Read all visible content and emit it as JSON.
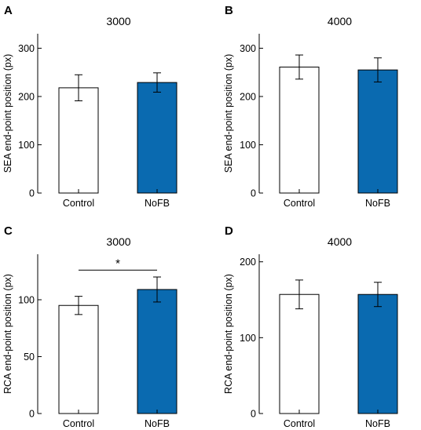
{
  "chart_data": [
    {
      "panel_letter": "A",
      "type": "bar",
      "title": "3000",
      "ylabel": "SEA end-point position (px)",
      "xlabel": "",
      "categories": [
        "Control",
        "NoFB"
      ],
      "values": [
        218,
        229
      ],
      "errors": [
        27,
        20
      ],
      "ylim": [
        0,
        330
      ],
      "yticks": [
        0,
        100,
        200,
        300
      ],
      "bar_colors": [
        "#ffffff",
        "#0a6ab0"
      ],
      "significance": null
    },
    {
      "panel_letter": "B",
      "type": "bar",
      "title": "4000",
      "ylabel": "SEA end-point position (px)",
      "xlabel": "",
      "categories": [
        "Control",
        "NoFB"
      ],
      "values": [
        261,
        255
      ],
      "errors": [
        25,
        25
      ],
      "ylim": [
        0,
        330
      ],
      "yticks": [
        0,
        100,
        200,
        300
      ],
      "bar_colors": [
        "#ffffff",
        "#0a6ab0"
      ],
      "significance": null
    },
    {
      "panel_letter": "C",
      "type": "bar",
      "title": "3000",
      "ylabel": "RCA end-point position (px)",
      "xlabel": "",
      "categories": [
        "Control",
        "NoFB"
      ],
      "values": [
        95,
        109
      ],
      "errors": [
        8,
        11
      ],
      "ylim": [
        0,
        140
      ],
      "yticks": [
        0,
        50,
        100
      ],
      "bar_colors": [
        "#ffffff",
        "#0a6ab0"
      ],
      "significance": {
        "label": "*",
        "between": [
          "Control",
          "NoFB"
        ],
        "y": 126
      }
    },
    {
      "panel_letter": "D",
      "type": "bar",
      "title": "4000",
      "ylabel": "RCA end-point position (px)",
      "xlabel": "",
      "categories": [
        "Control",
        "NoFB"
      ],
      "values": [
        157,
        157
      ],
      "errors": [
        19,
        16
      ],
      "ylim": [
        0,
        210
      ],
      "yticks": [
        0,
        100,
        200
      ],
      "bar_colors": [
        "#ffffff",
        "#0a6ab0"
      ],
      "significance": null
    }
  ]
}
